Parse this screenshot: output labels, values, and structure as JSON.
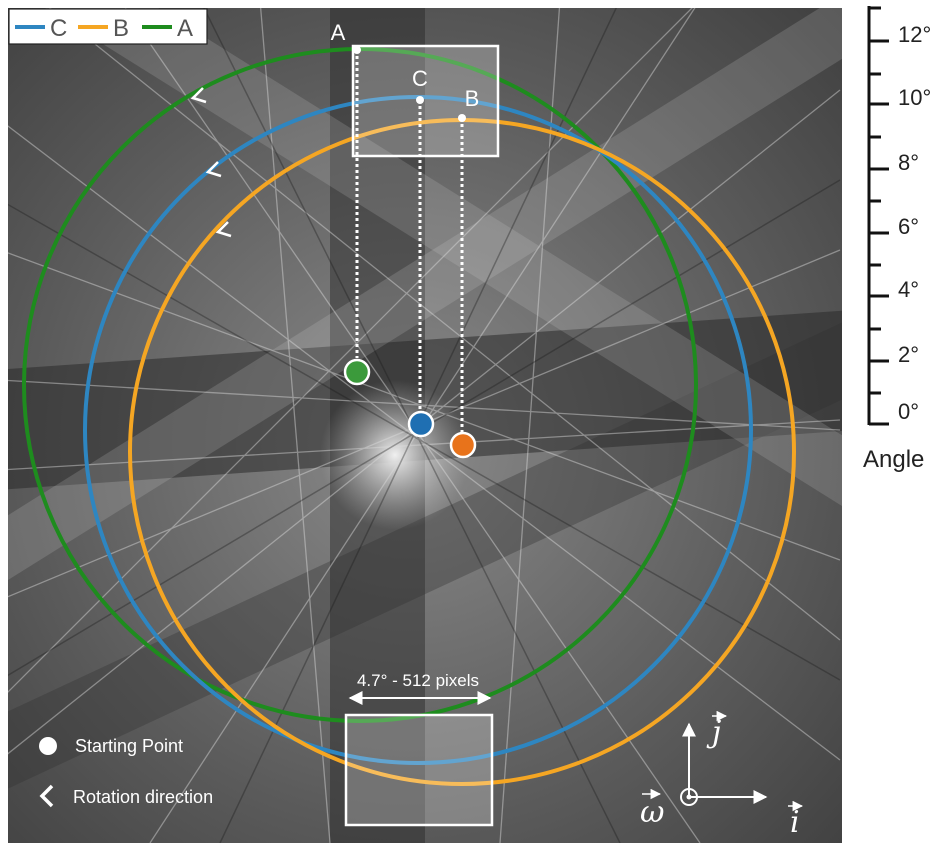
{
  "legend": {
    "items": [
      {
        "label": "C",
        "color": "#2e86c1"
      },
      {
        "label": "B",
        "color": "#f5a623"
      },
      {
        "label": "A",
        "color": "#1e8c1e"
      }
    ]
  },
  "point_labels": {
    "a": "A",
    "b": "B",
    "c": "C"
  },
  "scale_label": "4.7° - 512 pixels",
  "key": {
    "starting_point": "Starting Point",
    "rotation_direction": "Rotation direction"
  },
  "axes": {
    "j": "j",
    "i": "i",
    "omega": "ω"
  },
  "angle_bar": {
    "title": "Angle",
    "ticks": [
      "12°",
      "10°",
      "8°",
      "6°",
      "4°",
      "2°",
      "0°"
    ]
  },
  "colors": {
    "circle_a": "#1e8c1e",
    "circle_b": "#f5a623",
    "circle_c": "#2e86c1",
    "dot_a": "#3b9a3b",
    "dot_b": "#e8731b",
    "dot_c": "#1f6fb2",
    "box": "#ffffff"
  }
}
